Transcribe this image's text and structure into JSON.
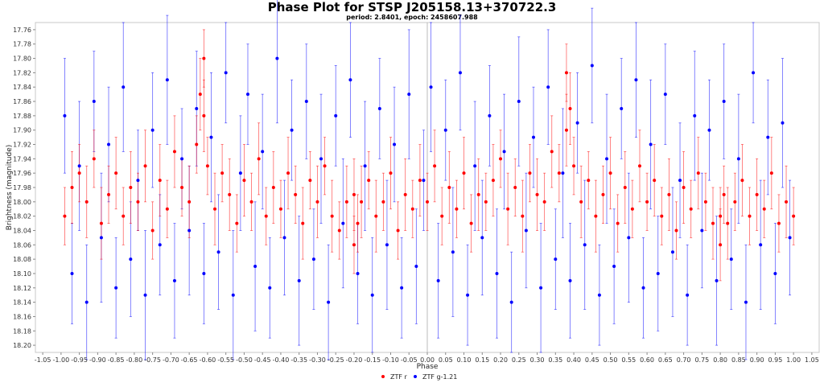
{
  "chart_data": {
    "type": "scatter",
    "title": "Phase Plot for STSP J205158.13+370722.3",
    "subtitle": "period: 2.8401, epoch: 2458607.988",
    "xlabel": "Phase",
    "ylabel": "Brightness (magnitude)",
    "xlim": [
      -1.07,
      1.07
    ],
    "ylim": [
      18.21,
      17.75
    ],
    "y_inverted": true,
    "x_ticks": [
      -1.05,
      -1.0,
      -0.95,
      -0.9,
      -0.85,
      -0.8,
      -0.75,
      -0.7,
      -0.65,
      -0.6,
      -0.55,
      -0.5,
      -0.45,
      -0.4,
      -0.35,
      -0.3,
      -0.25,
      -0.2,
      -0.15,
      -0.1,
      -0.05,
      0.0,
      0.05,
      0.1,
      0.15,
      0.2,
      0.25,
      0.3,
      0.35,
      0.4,
      0.45,
      0.5,
      0.55,
      0.6,
      0.65,
      0.7,
      0.75,
      0.8,
      0.85,
      0.9,
      0.95,
      1.0,
      1.05
    ],
    "x_tick_labels": [
      "-1.05",
      "-1.00",
      "-0.95",
      "-0.90",
      "-0.85",
      "-0.80",
      "-0.75",
      "-0.70",
      "-0.65",
      "-0.60",
      "-0.55",
      "-0.50",
      "-0.45",
      "-0.40",
      "-0.35",
      "-0.30",
      "-0.25",
      "-0.20",
      "-0.15",
      "-0.10",
      "-0.05",
      "0.00",
      "0.05",
      "0.10",
      "0.15",
      "0.20",
      "0.25",
      "0.30",
      "0.35",
      "0.40",
      "0.45",
      "0.50",
      "0.55",
      "0.60",
      "0.65",
      "0.70",
      "0.75",
      "0.80",
      "0.85",
      "0.90",
      "0.95",
      "1.00",
      "1.05"
    ],
    "y_ticks": [
      17.76,
      17.78,
      17.8,
      17.82,
      17.84,
      17.86,
      17.88,
      17.9,
      17.92,
      17.94,
      17.96,
      17.98,
      18.0,
      18.02,
      18.04,
      18.06,
      18.08,
      18.1,
      18.12,
      18.14,
      18.16,
      18.18,
      18.2
    ],
    "y_tick_labels": [
      "17.76",
      "17.78",
      "17.80",
      "17.82",
      "17.84",
      "17.86",
      "17.88",
      "17.90",
      "17.92",
      "17.94",
      "17.96",
      "17.98",
      "18.00",
      "18.02",
      "18.04",
      "18.06",
      "18.08",
      "18.10",
      "18.12",
      "18.14",
      "18.16",
      "18.18",
      "18.20"
    ],
    "grid": false,
    "zero_line": true,
    "legend_position": "bottom-center",
    "series": [
      {
        "name": "ZTF r",
        "color": "#ff0000",
        "x": [
          -0.99,
          -0.97,
          -0.95,
          -0.93,
          -0.91,
          -0.89,
          -0.87,
          -0.85,
          -0.83,
          -0.81,
          -0.79,
          -0.77,
          -0.75,
          -0.73,
          -0.71,
          -0.69,
          -0.67,
          -0.65,
          -0.63,
          -0.62,
          -0.61,
          -0.61,
          -0.6,
          -0.58,
          -0.56,
          -0.54,
          -0.52,
          -0.5,
          -0.48,
          -0.46,
          -0.44,
          -0.42,
          -0.4,
          -0.38,
          -0.36,
          -0.34,
          -0.32,
          -0.3,
          -0.28,
          -0.26,
          -0.24,
          -0.22,
          -0.2,
          -0.2,
          -0.19,
          -0.18,
          -0.16,
          -0.14,
          -0.12,
          -0.1,
          -0.08,
          -0.06,
          -0.04,
          -0.02,
          0.0,
          0.02,
          0.04,
          0.06,
          0.08,
          0.1,
          0.12,
          0.14,
          0.16,
          0.18,
          0.2,
          0.22,
          0.24,
          0.26,
          0.28,
          0.3,
          0.32,
          0.34,
          0.36,
          0.38,
          0.38,
          0.39,
          0.4,
          0.42,
          0.44,
          0.46,
          0.48,
          0.5,
          0.52,
          0.54,
          0.56,
          0.58,
          0.6,
          0.62,
          0.64,
          0.66,
          0.68,
          0.7,
          0.72,
          0.74,
          0.76,
          0.78,
          0.8,
          0.8,
          0.81,
          0.82,
          0.84,
          0.86,
          0.88,
          0.9,
          0.92,
          0.94,
          0.96,
          0.98,
          1.0
        ],
        "y": [
          18.02,
          17.98,
          17.96,
          18.0,
          17.94,
          18.03,
          17.99,
          17.96,
          18.02,
          17.98,
          18.0,
          17.95,
          18.04,
          17.97,
          18.01,
          17.93,
          17.98,
          18.0,
          17.92,
          17.85,
          17.8,
          17.88,
          17.95,
          18.01,
          17.96,
          17.99,
          18.03,
          17.97,
          18.0,
          17.94,
          18.02,
          17.98,
          18.01,
          17.96,
          17.99,
          18.03,
          17.97,
          18.0,
          17.95,
          18.02,
          18.04,
          18.0,
          18.06,
          17.99,
          18.03,
          18.0,
          17.97,
          18.02,
          18.0,
          17.96,
          18.04,
          17.99,
          18.01,
          17.97,
          18.0,
          17.95,
          18.02,
          17.98,
          18.01,
          17.96,
          18.03,
          17.99,
          18.0,
          17.97,
          17.94,
          18.01,
          17.98,
          18.02,
          17.96,
          17.99,
          18.0,
          17.93,
          17.96,
          17.9,
          17.82,
          17.87,
          17.95,
          18.0,
          17.97,
          18.02,
          17.99,
          17.96,
          18.03,
          17.98,
          18.01,
          17.95,
          18.0,
          17.97,
          18.02,
          17.99,
          18.04,
          17.98,
          18.01,
          17.96,
          18.0,
          18.03,
          18.02,
          18.06,
          17.99,
          18.03,
          18.0,
          17.97,
          18.02,
          17.99,
          18.01,
          17.96,
          18.03,
          18.0,
          18.02
        ],
        "err": [
          0.04,
          0.05,
          0.04,
          0.05,
          0.04,
          0.05,
          0.04,
          0.05,
          0.04,
          0.05,
          0.04,
          0.05,
          0.04,
          0.05,
          0.04,
          0.05,
          0.04,
          0.05,
          0.04,
          0.05,
          0.04,
          0.05,
          0.04,
          0.05,
          0.04,
          0.05,
          0.04,
          0.05,
          0.04,
          0.05,
          0.04,
          0.05,
          0.04,
          0.05,
          0.04,
          0.05,
          0.04,
          0.05,
          0.04,
          0.05,
          0.04,
          0.05,
          0.04,
          0.05,
          0.04,
          0.05,
          0.04,
          0.05,
          0.04,
          0.05,
          0.04,
          0.05,
          0.04,
          0.05,
          0.04,
          0.05,
          0.04,
          0.05,
          0.04,
          0.05,
          0.04,
          0.05,
          0.04,
          0.05,
          0.04,
          0.05,
          0.04,
          0.05,
          0.04,
          0.05,
          0.04,
          0.05,
          0.04,
          0.05,
          0.04,
          0.05,
          0.04,
          0.05,
          0.04,
          0.05,
          0.04,
          0.05,
          0.04,
          0.05,
          0.04,
          0.05,
          0.04,
          0.05,
          0.04,
          0.05,
          0.04,
          0.05,
          0.04,
          0.05,
          0.04,
          0.05,
          0.04,
          0.05,
          0.04,
          0.05,
          0.04,
          0.05,
          0.04,
          0.05,
          0.04,
          0.05,
          0.04,
          0.05,
          0.04
        ]
      },
      {
        "name": "ZTF g-1.21",
        "color": "#0000ff",
        "x": [
          -0.99,
          -0.97,
          -0.95,
          -0.93,
          -0.91,
          -0.89,
          -0.87,
          -0.85,
          -0.83,
          -0.81,
          -0.79,
          -0.77,
          -0.75,
          -0.73,
          -0.71,
          -0.69,
          -0.67,
          -0.65,
          -0.63,
          -0.61,
          -0.59,
          -0.57,
          -0.55,
          -0.53,
          -0.51,
          -0.49,
          -0.47,
          -0.45,
          -0.43,
          -0.41,
          -0.39,
          -0.37,
          -0.35,
          -0.33,
          -0.31,
          -0.29,
          -0.27,
          -0.25,
          -0.23,
          -0.21,
          -0.19,
          -0.17,
          -0.15,
          -0.13,
          -0.11,
          -0.09,
          -0.07,
          -0.05,
          -0.03,
          -0.01,
          0.01,
          0.03,
          0.05,
          0.07,
          0.09,
          0.11,
          0.13,
          0.15,
          0.17,
          0.19,
          0.21,
          0.23,
          0.25,
          0.27,
          0.29,
          0.31,
          0.33,
          0.35,
          0.37,
          0.39,
          0.41,
          0.43,
          0.45,
          0.47,
          0.49,
          0.51,
          0.53,
          0.55,
          0.57,
          0.59,
          0.61,
          0.63,
          0.65,
          0.67,
          0.69,
          0.71,
          0.73,
          0.75,
          0.77,
          0.79,
          0.81,
          0.83,
          0.85,
          0.87,
          0.89,
          0.91,
          0.93,
          0.95,
          0.97,
          0.99
        ],
        "y": [
          17.88,
          18.1,
          17.95,
          18.14,
          17.86,
          18.05,
          17.92,
          18.12,
          17.84,
          18.08,
          17.97,
          18.13,
          17.9,
          18.06,
          17.83,
          18.11,
          17.94,
          18.04,
          17.87,
          18.1,
          17.91,
          18.07,
          17.82,
          18.13,
          17.96,
          17.85,
          18.09,
          17.93,
          18.12,
          17.8,
          18.05,
          17.9,
          18.11,
          17.86,
          18.08,
          17.94,
          18.14,
          17.88,
          18.03,
          17.83,
          18.1,
          17.95,
          18.13,
          17.87,
          18.06,
          17.92,
          18.12,
          17.85,
          18.09,
          17.97,
          17.84,
          18.11,
          17.9,
          18.07,
          17.82,
          18.13,
          17.95,
          18.05,
          17.88,
          18.1,
          17.93,
          18.14,
          17.86,
          18.04,
          17.91,
          18.12,
          17.84,
          18.08,
          17.96,
          18.11,
          17.89,
          18.06,
          17.81,
          18.13,
          17.94,
          18.09,
          17.87,
          18.05,
          17.83,
          18.12,
          17.92,
          18.1,
          17.85,
          18.07,
          17.97,
          18.13,
          17.88,
          18.04,
          17.9,
          18.11,
          17.86,
          18.08,
          17.94,
          18.14,
          17.82,
          18.06,
          17.91,
          18.1,
          17.89,
          18.05
        ],
        "err": [
          0.08,
          0.07,
          0.09,
          0.08,
          0.07,
          0.09,
          0.08,
          0.07,
          0.09,
          0.08,
          0.07,
          0.09,
          0.08,
          0.07,
          0.09,
          0.08,
          0.07,
          0.09,
          0.08,
          0.07,
          0.09,
          0.08,
          0.07,
          0.09,
          0.08,
          0.07,
          0.09,
          0.08,
          0.07,
          0.09,
          0.08,
          0.07,
          0.09,
          0.08,
          0.07,
          0.09,
          0.08,
          0.07,
          0.09,
          0.08,
          0.07,
          0.09,
          0.08,
          0.07,
          0.09,
          0.08,
          0.07,
          0.09,
          0.08,
          0.07,
          0.09,
          0.08,
          0.07,
          0.09,
          0.08,
          0.07,
          0.09,
          0.08,
          0.07,
          0.09,
          0.08,
          0.07,
          0.09,
          0.08,
          0.07,
          0.09,
          0.08,
          0.07,
          0.09,
          0.08,
          0.07,
          0.09,
          0.08,
          0.07,
          0.09,
          0.08,
          0.07,
          0.09,
          0.08,
          0.07,
          0.09,
          0.08,
          0.07,
          0.09,
          0.08,
          0.07,
          0.09,
          0.08,
          0.07,
          0.09,
          0.08,
          0.07,
          0.09,
          0.08,
          0.07,
          0.09,
          0.08,
          0.07,
          0.09,
          0.08
        ]
      }
    ]
  }
}
